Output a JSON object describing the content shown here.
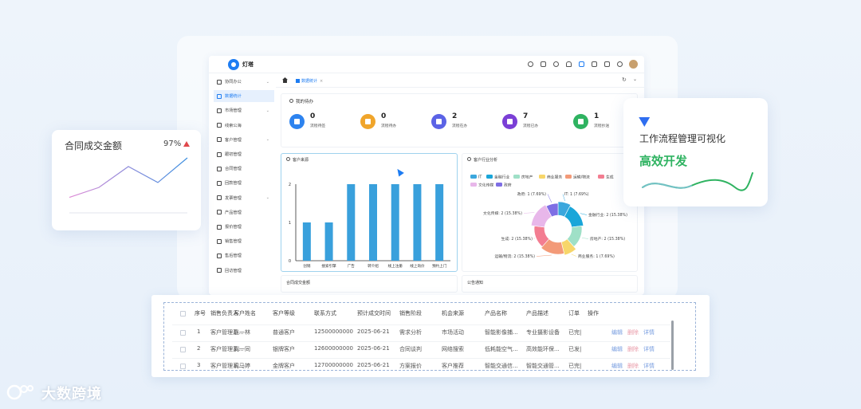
{
  "app": {
    "title": "灯塔"
  },
  "sidebar": {
    "items": [
      {
        "label": "协同办公",
        "chev": true
      },
      {
        "label": "数据统计",
        "active": true
      },
      {
        "label": "市场管理",
        "chev": true
      },
      {
        "label": "线索公海"
      },
      {
        "label": "客户管理",
        "chev": true
      },
      {
        "label": "跟初管理"
      },
      {
        "label": "合同管理"
      },
      {
        "label": "回款管理"
      },
      {
        "label": "发票管理",
        "chev": true
      },
      {
        "label": "产品管理"
      },
      {
        "label": "报价管理"
      },
      {
        "label": "销售管理"
      },
      {
        "label": "售后管理"
      },
      {
        "label": "回访管理"
      }
    ]
  },
  "tabs": {
    "active": "数据统计"
  },
  "todo": {
    "title": "我的待办",
    "items": [
      {
        "count": "0",
        "label": "流程待签",
        "color": "#2d83ef"
      },
      {
        "count": "0",
        "label": "流程待办",
        "color": "#f0a52b"
      },
      {
        "count": "2",
        "label": "流程在办",
        "color": "#5b63e6"
      },
      {
        "count": "7",
        "label": "流程已办",
        "color": "#7b3fd6"
      },
      {
        "count": "1",
        "label": "流程抄送",
        "color": "#2fb361"
      }
    ]
  },
  "source_chart": {
    "title": "客户来源",
    "chart_data": {
      "type": "bar",
      "categories": [
        "创销",
        "搜索引擎",
        "广告",
        "转介绍",
        "线上注册",
        "线上询价",
        "预约上门"
      ],
      "values": [
        1,
        1,
        2,
        2,
        2,
        2,
        2
      ],
      "ylim": [
        0,
        2
      ],
      "yticks": [
        "0",
        "1",
        "2"
      ],
      "color": "#39a0dc"
    }
  },
  "industry_chart": {
    "title": "客户行业分析",
    "chart_data": {
      "type": "pie",
      "legend": [
        "IT",
        "金融行业",
        "房地产",
        "商业服务",
        "运输/物流",
        "生成",
        "文化传媒",
        "政府"
      ],
      "labels": [
        "IT: 1 (7.69%)",
        "金融行业: 2 (15.38%)",
        "房地产: 2 (15.38%)",
        "商业服务: 1 (7.69%)",
        "运输/物流: 2 (15.38%)",
        "生成: 2 (15.38%)",
        "文化传媒: 2 (15.38%)",
        "政府: 1 (7.69%)"
      ],
      "values": [
        1,
        2,
        2,
        1,
        2,
        2,
        2,
        1
      ],
      "colors": [
        "#3ba7dd",
        "#1aa6d9",
        "#9fe0c7",
        "#f7d66a",
        "#f39a78",
        "#f37d91",
        "#e8b7ea",
        "#7e6ee4"
      ]
    }
  },
  "bottom_cards": {
    "left": "合同成交金额",
    "right": "公告通知"
  },
  "float_left": {
    "title": "合同成交金额",
    "percent": "97%",
    "chart_data": {
      "type": "line",
      "values": [
        10,
        18,
        35,
        22,
        42
      ]
    }
  },
  "float_right": {
    "line1": "工作流程管理可视化",
    "line2": "高效开发"
  },
  "table": {
    "headers": [
      "序号",
      "销售负责人",
      "客户姓名",
      "客户等级",
      "联系方式",
      "预计成交时间",
      "销售阶段",
      "机会来源",
      "产品名称",
      "产品描述",
      "订单",
      "操作"
    ],
    "rows": [
      [
        "1",
        "客户管理系...",
        "赵一林",
        "普通客户",
        "12500000000",
        "2025-06-21",
        "需求分析",
        "市场活动",
        "智能影像捕...",
        "专业摄影设备",
        "已完|"
      ],
      [
        "2",
        "客户管理系...",
        "刘一同",
        "银牌客户",
        "12600000000",
        "2025-06-21",
        "合同谈判",
        "网络搜索",
        "低耗能空气...",
        "高效能环保...",
        "已发|"
      ],
      [
        "3",
        "客户管理系...",
        "司马婷",
        "金牌客户",
        "12700000000",
        "2025-06-21",
        "方案报价",
        "客户推荐",
        "智能交通信...",
        "智能交通管...",
        "已完|"
      ]
    ],
    "ops": [
      "编辑",
      "删除",
      "详情"
    ]
  },
  "brand": {
    "name": "大数跨境"
  },
  "colors": {
    "primary": "#1d7cf2",
    "green": "#2fb361"
  }
}
